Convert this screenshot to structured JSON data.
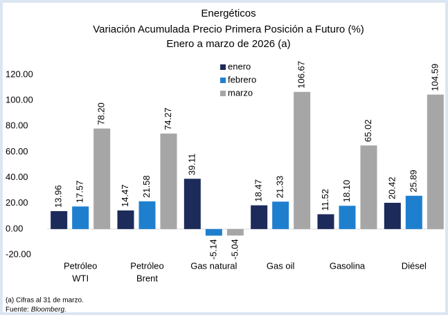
{
  "chart_data": {
    "type": "bar",
    "title": "Energéticos",
    "subtitle": [
      "Variación Acumulada Precio Primera Posición a Futuro (%)",
      "Enero a marzo de 2026 (a)"
    ],
    "categories": [
      [
        "Petróleo",
        "WTI"
      ],
      [
        "Petróleo",
        "Brent"
      ],
      [
        "Gas natural"
      ],
      [
        "Gas oil"
      ],
      [
        "Gasolina"
      ],
      [
        "Diésel"
      ]
    ],
    "series": [
      {
        "name": "enero",
        "color": "#1c2b5a",
        "values": [
          13.96,
          14.47,
          39.11,
          18.47,
          11.52,
          20.42
        ],
        "value_labels": [
          "13.96",
          "14.47",
          "39.11",
          "18.47",
          "11.52",
          "20.42"
        ]
      },
      {
        "name": "febrero",
        "color": "#1f7fcf",
        "values": [
          17.57,
          21.58,
          -5.14,
          21.33,
          18.1,
          25.89
        ],
        "value_labels": [
          "17.57",
          "21.58",
          "-5.14",
          "21.33",
          "18.10",
          "25.89"
        ]
      },
      {
        "name": "marzo",
        "color": "#a6a6a6",
        "values": [
          78.2,
          74.27,
          -5.04,
          106.67,
          65.02,
          104.59
        ],
        "value_labels": [
          "78.20",
          "74.27",
          "-5.04",
          "106.67",
          "65.02",
          "104.59"
        ]
      }
    ],
    "ylim": [
      -20,
      120
    ],
    "yticks": [
      {
        "value": -20,
        "label": "-20.00"
      },
      {
        "value": 0,
        "label": "0.00"
      },
      {
        "value": 20,
        "label": "20.00"
      },
      {
        "value": 40,
        "label": "40.00"
      },
      {
        "value": 60,
        "label": "60.00"
      },
      {
        "value": 80,
        "label": "80.00"
      },
      {
        "value": 100,
        "label": "100.00"
      },
      {
        "value": 120,
        "label": "120.00"
      }
    ],
    "grid": false,
    "note": "(a) Cifras al 31 de marzo.",
    "source": {
      "label": "Fuente:",
      "name": "Bloomberg."
    }
  }
}
